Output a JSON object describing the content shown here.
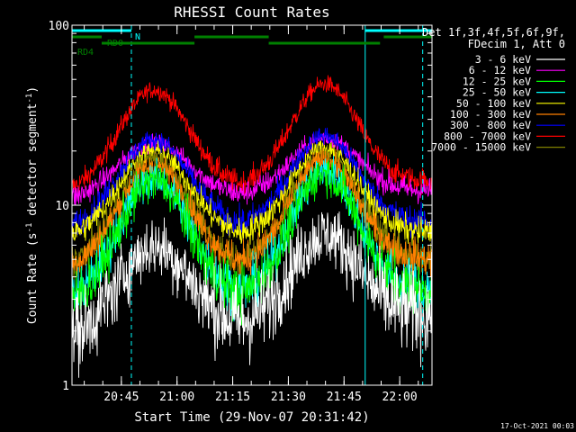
{
  "chart_data": {
    "type": "line",
    "title": "RHESSI Count Rates",
    "xlabel": "Start Time (29-Nov-07 20:31:42)",
    "ylabel_main": "Count Rate (s",
    "ylabel_sup1": "-1",
    "ylabel_mid": " detector segment",
    "ylabel_sup2": "-1",
    "ylabel_end": ")",
    "y_scale": "log",
    "ylim": [
      1,
      100
    ],
    "y_ticks": [
      {
        "value": 1,
        "label": "1"
      },
      {
        "value": 10,
        "label": "10"
      },
      {
        "value": 100,
        "label": "100"
      }
    ],
    "xlim_minutes": [
      0,
      97
    ],
    "x_ticks": [
      {
        "value": 13.3,
        "label": "20:45"
      },
      {
        "value": 28.3,
        "label": "21:00"
      },
      {
        "value": 43.3,
        "label": "21:15"
      },
      {
        "value": 58.3,
        "label": "21:30"
      },
      {
        "value": 73.3,
        "label": "21:45"
      },
      {
        "value": 88.3,
        "label": "22:00"
      }
    ],
    "legend_header": [
      "Det 1f,3f,4f,5f,6f,9f,",
      "FDecim 1, Att 0"
    ],
    "legend_placement": "right",
    "series": [
      {
        "name": "3 - 6 keV",
        "color": "#ffffff",
        "base": 1.8,
        "peak": 5.4,
        "end": 2.5,
        "noise": 0.12
      },
      {
        "name": "6 - 12 keV",
        "color": "#ff00ff",
        "base": 10.5,
        "peak": 21.5,
        "end": 12.0,
        "noise": 0.035
      },
      {
        "name": "12 - 25 keV",
        "color": "#00ff00",
        "base": 2.7,
        "peak": 13.0,
        "end": 3.3,
        "noise": 0.08
      },
      {
        "name": "25 - 50 keV",
        "color": "#00ffff",
        "base": 2.8,
        "peak": 13.5,
        "end": 3.4,
        "noise": 0.07
      },
      {
        "name": "50 - 100 keV",
        "color": "#ffff00",
        "base": 6.4,
        "peak": 19.5,
        "end": 7.0,
        "noise": 0.04
      },
      {
        "name": "100 - 300 keV",
        "color": "#ff8000",
        "base": 4.3,
        "peak": 16.0,
        "end": 5.0,
        "noise": 0.05
      },
      {
        "name": "300 - 800 keV",
        "color": "#0000ff",
        "base": 7.2,
        "peak": 22.5,
        "end": 8.0,
        "noise": 0.04
      },
      {
        "name": "800 - 7000 keV",
        "color": "#ff0000",
        "base": 11.5,
        "peak": 42.0,
        "end": 13.5,
        "noise": 0.035
      },
      {
        "name": "7000 - 15000 keV",
        "color": "#808000",
        "base": 4.4,
        "peak": 17.5,
        "end": 5.0,
        "noise": 0.05
      }
    ],
    "annotations": [
      "N",
      "RD0",
      "RD4"
    ],
    "flag_bars": [
      {
        "label": "N",
        "color": "#00ffff",
        "level": 1,
        "segments": [
          [
            0,
            16
          ],
          [
            79,
            97
          ]
        ]
      },
      {
        "label": "RD0",
        "color": "#008000",
        "level": 2,
        "segments": [
          [
            0,
            8
          ],
          [
            33,
            53
          ],
          [
            84,
            97
          ]
        ]
      },
      {
        "label": "RD4",
        "color": "#008000",
        "level": 3,
        "segments": [
          [
            8,
            33
          ],
          [
            53,
            83
          ]
        ]
      }
    ],
    "vertical_lines": [
      {
        "x": 16,
        "color": "#00ffff",
        "style": "dashed"
      },
      {
        "x": 79,
        "color": "#00ffff",
        "style": "solid"
      },
      {
        "x": 94.5,
        "color": "#00ffff",
        "style": "dashed"
      }
    ],
    "bump_centers_minutes": [
      22,
      68
    ],
    "grid": false
  },
  "footer": {
    "timestamp": "17-Oct-2021 00:03"
  }
}
